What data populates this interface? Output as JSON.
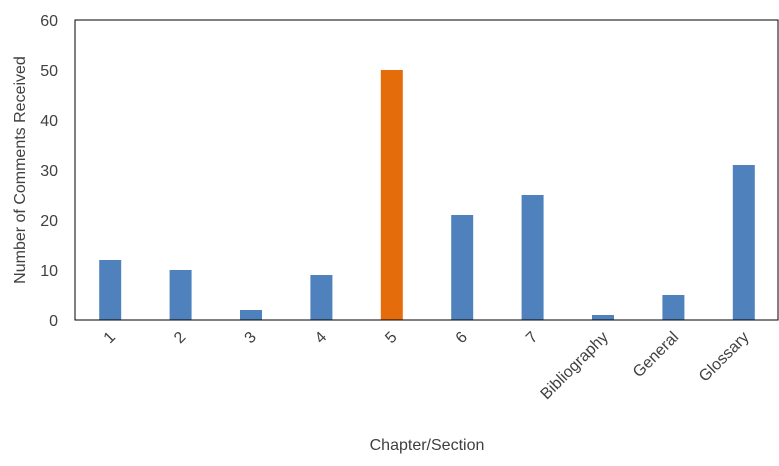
{
  "chart_data": {
    "type": "bar",
    "categories": [
      "1",
      "2",
      "3",
      "4",
      "5",
      "6",
      "7",
      "Bibliography",
      "General",
      "Glossary"
    ],
    "values": [
      12,
      10,
      2,
      9,
      50,
      21,
      25,
      1,
      5,
      31
    ],
    "title": "",
    "xlabel": "Chapter/Section",
    "ylabel": "Number of Comments Received",
    "ylim": [
      0,
      60
    ],
    "yticks": [
      "0",
      "10",
      "20",
      "30",
      "40",
      "50",
      "60"
    ],
    "grid": false,
    "legend": "none",
    "colors": {
      "default_bar": "#4f81bd",
      "highlight_bar": "#e46c0a",
      "axis": "#000000",
      "text": "#404040"
    },
    "highlight_category": "5"
  }
}
